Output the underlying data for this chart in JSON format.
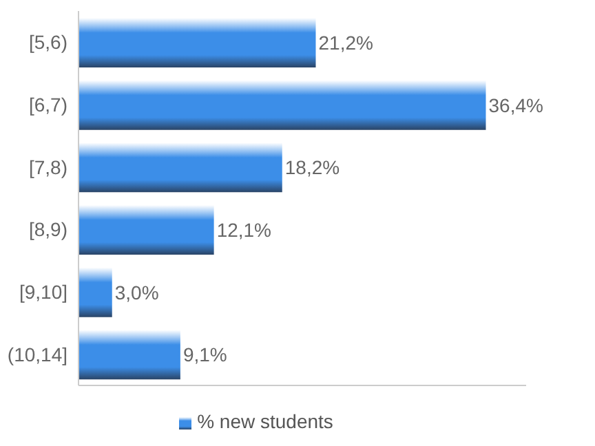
{
  "chart_data": {
    "type": "bar",
    "orientation": "horizontal",
    "categories": [
      "[5,6)",
      "[6,7)",
      "[7,8)",
      "[8,9)",
      "[9,10]",
      "(10,14]"
    ],
    "series": [
      {
        "name": "% new students",
        "color": "#3c8ee8",
        "values": [
          21.2,
          36.4,
          18.2,
          12.1,
          3.0,
          9.1
        ],
        "value_labels": [
          "21,2%",
          "36,4%",
          "18,2%",
          "12,1%",
          "3,0%",
          "9,1%"
        ]
      }
    ],
    "tick_labels": "y",
    "legend": "bottom"
  }
}
